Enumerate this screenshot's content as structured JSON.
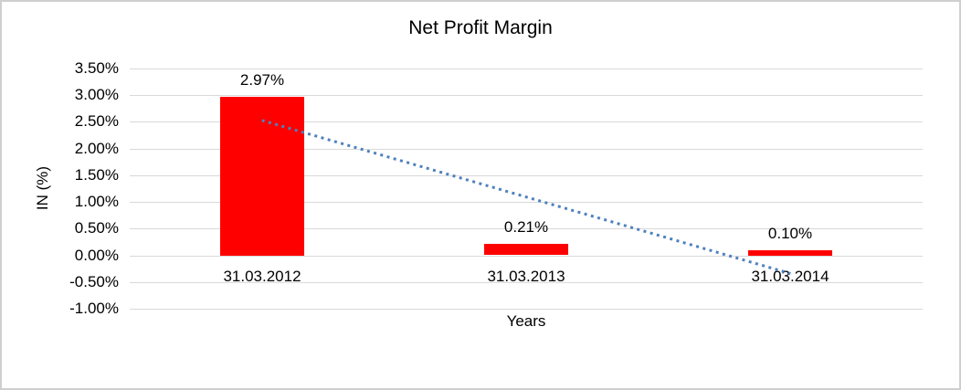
{
  "window": {
    "background_color": "#ffffff",
    "border_color": "#cfcfcf"
  },
  "chart_data": {
    "type": "bar",
    "title": "Net Profit Margin",
    "xlabel": "Years",
    "ylabel": "IN (%)",
    "categories": [
      "31.03.2012",
      "31.03.2013",
      "31.03.2014"
    ],
    "values": [
      2.97,
      0.21,
      0.1
    ],
    "data_labels": [
      "2.97%",
      "0.21%",
      "0.10%"
    ],
    "y_ticks": [
      "3.50%",
      "3.00%",
      "2.50%",
      "2.00%",
      "1.50%",
      "1.00%",
      "0.50%",
      "0.00%",
      "-0.50%",
      "-1.00%"
    ],
    "y_tick_values": [
      3.5,
      3.0,
      2.5,
      2.0,
      1.5,
      1.0,
      0.5,
      0.0,
      -0.5,
      -1.0
    ],
    "ylim": [
      -1.0,
      3.5
    ],
    "grid": true,
    "legend": "none",
    "bar_color": "#ff0000",
    "gridline_color": "#d9d9d9",
    "text_color": "#000000",
    "trendline": {
      "type": "linear",
      "style": "dotted",
      "color": "#4e81bd"
    }
  }
}
